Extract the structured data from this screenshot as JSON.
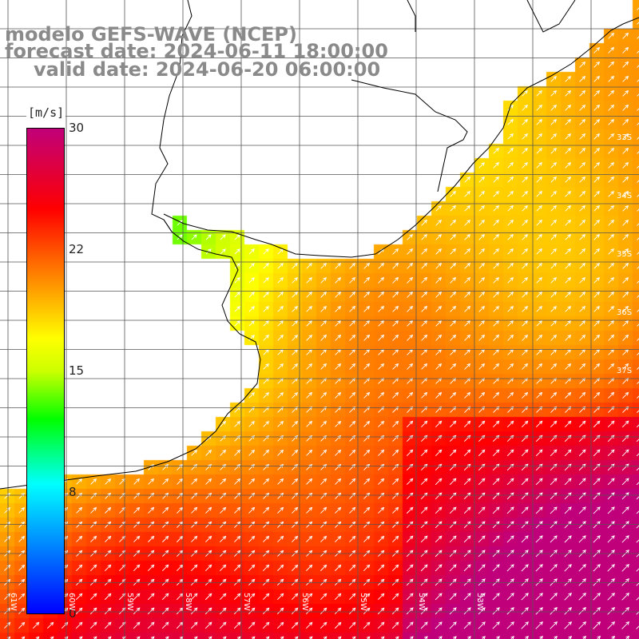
{
  "title": {
    "line1": "modelo GEFS-WAVE (NCEP)",
    "line2": "forecast date: 2024-06-11 18:00:00",
    "line3": "valid date: 2024-06-20 06:00:00"
  },
  "colorbar": {
    "units": "[m/s]",
    "ticks": [
      "30",
      "22",
      "15",
      "8",
      "0"
    ],
    "tick_values": [
      30,
      22,
      15,
      8,
      0
    ],
    "range": [
      0,
      30
    ],
    "stops": [
      {
        "value": 0,
        "color": "#0000ff"
      },
      {
        "value": 8,
        "color": "#00ffff"
      },
      {
        "value": 12,
        "color": "#00ff00"
      },
      {
        "value": 15,
        "color": "#ccff00"
      },
      {
        "value": 17,
        "color": "#ffff00"
      },
      {
        "value": 22,
        "color": "#ff6000"
      },
      {
        "value": 25,
        "color": "#ff0000"
      },
      {
        "value": 30,
        "color": "#c0007a"
      }
    ]
  },
  "grid_labels": {
    "lat": [
      "33S",
      "34S",
      "35S",
      "36S",
      "37S"
    ],
    "lat_values": [
      33,
      34,
      35,
      36,
      37
    ],
    "lon": [
      "61W",
      "60W",
      "59W",
      "58W",
      "57W",
      "56W",
      "55W",
      "54W",
      "53W"
    ],
    "lon_values": [
      61,
      60,
      59,
      58,
      57,
      56,
      55,
      54,
      53
    ]
  },
  "colors": {
    "gridline": "#555555",
    "coastline": "#000000",
    "land": "#ffffff",
    "arrows": "#ffffff",
    "title_text": "#8a8a8a"
  }
}
